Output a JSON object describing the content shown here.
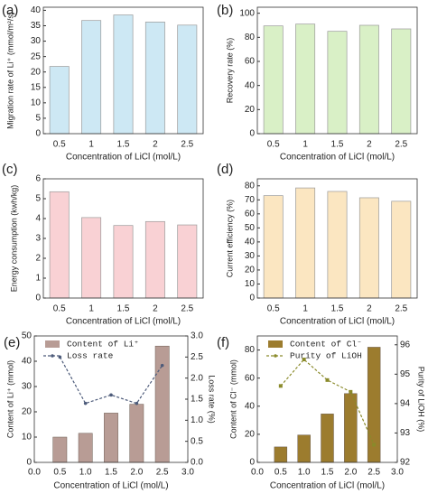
{
  "chart_data": [
    {
      "type": "bar",
      "panel_label": "(a)",
      "categories": [
        "0.5",
        "1",
        "1.5",
        "2",
        "2.5"
      ],
      "values": [
        21.8,
        36.7,
        38.5,
        36.2,
        35.2
      ],
      "color": "#cde8f4",
      "ylim": [
        0,
        41
      ],
      "yticks": [
        0,
        5,
        10,
        15,
        20,
        25,
        30,
        35,
        40
      ],
      "xlabel": "Concentration of LiCl (mol/L)",
      "ylabel": "Migration rate of Li⁺ (mmol/m²/s)"
    },
    {
      "type": "bar",
      "panel_label": "(b)",
      "categories": [
        "0.5",
        "1",
        "1.5",
        "2",
        "2.5"
      ],
      "values": [
        89.5,
        91,
        85,
        90,
        87
      ],
      "color": "#d9f0c6",
      "ylim": [
        0,
        105
      ],
      "yticks": [
        0,
        20,
        40,
        60,
        80,
        100
      ],
      "xlabel": "Concentration of LiCl (mol/L)",
      "ylabel": "Recovery rate (%)"
    },
    {
      "type": "bar",
      "panel_label": "(c)",
      "categories": [
        "0.5",
        "1",
        "1.5",
        "2",
        "2.5"
      ],
      "values": [
        5.35,
        4.05,
        3.65,
        3.85,
        3.68
      ],
      "color": "#f9d1d4",
      "ylim": [
        0,
        6
      ],
      "yticks": [
        0,
        1,
        2,
        3,
        4,
        5,
        6
      ],
      "xlabel": "Concentration of LiCl (mol/L)",
      "ylabel": "Energy consumption (kwh/kg)"
    },
    {
      "type": "bar",
      "panel_label": "(d)",
      "categories": [
        "0.5",
        "1",
        "1.5",
        "2",
        "2.5"
      ],
      "values": [
        73,
        78.5,
        76,
        71.5,
        69
      ],
      "color": "#fbe6c1",
      "ylim": [
        0,
        85
      ],
      "yticks": [
        0,
        10,
        20,
        30,
        40,
        50,
        60,
        70,
        80
      ],
      "xlabel": "Concentration of LiCl (mol/L)",
      "ylabel": "Current efficiency (%)"
    },
    {
      "type": "combo",
      "panel_label": "(e)",
      "x": [
        0.5,
        1.0,
        1.5,
        2.0,
        2.5
      ],
      "series": [
        {
          "name": "Content of Li⁺",
          "color": "#b89c95",
          "values": [
            10,
            11.5,
            19.5,
            23,
            46
          ]
        },
        {
          "name": "Loss rate",
          "color": "#4d5b7a",
          "values": [
            2.5,
            1.4,
            1.6,
            1.4,
            2.3
          ],
          "axis": "y2",
          "marker": "circle"
        }
      ],
      "xlim": [
        0,
        3
      ],
      "xticks": [
        {
          "value": 0,
          "label": "0.0"
        },
        {
          "value": 0.5,
          "label": "0.5"
        },
        {
          "value": 1,
          "label": "1.0"
        },
        {
          "value": 1.5,
          "label": "1.5"
        },
        {
          "value": 2,
          "label": "2.0"
        },
        {
          "value": 2.5,
          "label": "2.5"
        },
        {
          "value": 3,
          "label": "3.0"
        }
      ],
      "ylim": [
        0,
        50
      ],
      "yticks": [
        0,
        10,
        20,
        30,
        40,
        50
      ],
      "y2lim": [
        0,
        3
      ],
      "y2ticks": [
        {
          "value": 0,
          "label": "0.0"
        },
        {
          "value": 0.5,
          "label": "0.5"
        },
        {
          "value": 1,
          "label": "1.0"
        },
        {
          "value": 1.5,
          "label": "1.5"
        },
        {
          "value": 2,
          "label": "2.0"
        },
        {
          "value": 2.5,
          "label": "2.5"
        },
        {
          "value": 3,
          "label": "3.0"
        }
      ],
      "xlabel": "Concentration of LiCl (mol/L)",
      "ylabel": "Content of Li⁺ (mmol)",
      "y2label": "Loss rate (%)"
    },
    {
      "type": "combo",
      "panel_label": "(f)",
      "x": [
        0.5,
        1.0,
        1.5,
        2.0,
        2.5
      ],
      "series": [
        {
          "name": "Content of Cl⁻",
          "color": "#9c7c2e",
          "values": [
            11,
            19.5,
            34.5,
            49,
            82
          ]
        },
        {
          "name": "Purity of LiOH",
          "color": "#8a8a2a",
          "values": [
            94.6,
            95.5,
            94.8,
            94.4,
            92.6
          ],
          "axis": "y2",
          "marker": "square"
        }
      ],
      "xlim": [
        0,
        3
      ],
      "xticks": [
        {
          "value": 0,
          "label": "0.0"
        },
        {
          "value": 0.5,
          "label": "0.5"
        },
        {
          "value": 1,
          "label": "1.0"
        },
        {
          "value": 1.5,
          "label": "1.5"
        },
        {
          "value": 2,
          "label": "2.0"
        },
        {
          "value": 2.5,
          "label": "2.5"
        },
        {
          "value": 3,
          "label": "3.0"
        }
      ],
      "ylim": [
        0,
        90
      ],
      "yticks": [
        0,
        20,
        40,
        60,
        80
      ],
      "y2lim": [
        92,
        96.3
      ],
      "y2ticks": [
        92,
        93,
        94,
        95,
        96
      ],
      "xlabel": "Concentration of LiCl (mol/L)",
      "ylabel": "Content of Cl⁻ (mmol)",
      "y2label": "Purity of LiOH (%)"
    }
  ]
}
